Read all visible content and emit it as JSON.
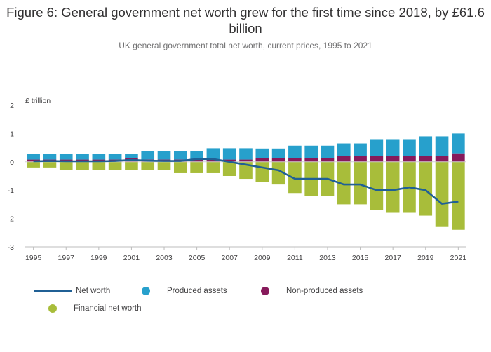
{
  "title": "Figure 6: General government net worth grew for the first time since 2018, by £61.6 billion",
  "subtitle": "UK general government total net worth, current prices, 1995 to 2021",
  "colors": {
    "produced": "#27a0cc",
    "nonproduced": "#871a5b",
    "financial": "#a8bd3a",
    "networth": "#206095"
  },
  "chart_data": {
    "type": "bar",
    "stacked": true,
    "ylabel": "£ trillion",
    "ylim": [
      -3,
      2
    ],
    "yticks": [
      2,
      1,
      0,
      -1,
      -2,
      -3
    ],
    "x": [
      1995,
      1996,
      1997,
      1998,
      1999,
      2000,
      2001,
      2002,
      2003,
      2004,
      2005,
      2006,
      2007,
      2008,
      2009,
      2010,
      2011,
      2012,
      2013,
      2014,
      2015,
      2016,
      2017,
      2018,
      2019,
      2020,
      2021
    ],
    "xtick_labels": [
      "1995",
      "1997",
      "1999",
      "2001",
      "2003",
      "2005",
      "2007",
      "2009",
      "2011",
      "2013",
      "2015",
      "2017",
      "2019",
      "2021"
    ],
    "series": [
      {
        "name": "Produced assets",
        "kind": "bar",
        "values": [
          0.2,
          0.2,
          0.2,
          0.2,
          0.2,
          0.2,
          0.15,
          0.3,
          0.3,
          0.3,
          0.3,
          0.4,
          0.4,
          0.4,
          0.35,
          0.35,
          0.45,
          0.45,
          0.45,
          0.45,
          0.45,
          0.6,
          0.6,
          0.6,
          0.7,
          0.7,
          0.7
        ]
      },
      {
        "name": "Non-produced assets",
        "kind": "bar",
        "values": [
          0.08,
          0.08,
          0.08,
          0.08,
          0.08,
          0.08,
          0.12,
          0.08,
          0.08,
          0.08,
          0.08,
          0.08,
          0.08,
          0.08,
          0.12,
          0.12,
          0.12,
          0.12,
          0.12,
          0.2,
          0.2,
          0.2,
          0.2,
          0.2,
          0.2,
          0.2,
          0.3
        ]
      },
      {
        "name": "Financial net worth",
        "kind": "bar",
        "values": [
          -0.2,
          -0.2,
          -0.3,
          -0.3,
          -0.3,
          -0.3,
          -0.3,
          -0.3,
          -0.3,
          -0.4,
          -0.4,
          -0.4,
          -0.5,
          -0.6,
          -0.7,
          -0.8,
          -1.1,
          -1.2,
          -1.2,
          -1.5,
          -1.5,
          -1.7,
          -1.8,
          -1.8,
          -1.9,
          -2.3,
          -2.4
        ]
      },
      {
        "name": "Net worth",
        "kind": "line",
        "values": [
          0.02,
          0.03,
          0.02,
          0.02,
          0.02,
          0.03,
          0.07,
          0.04,
          0.03,
          0.03,
          0.1,
          0.1,
          0.0,
          -0.1,
          -0.2,
          -0.3,
          -0.6,
          -0.6,
          -0.6,
          -0.8,
          -0.8,
          -1.0,
          -1.0,
          -0.9,
          -1.0,
          -1.48,
          -1.4
        ]
      }
    ],
    "legend": [
      "Net worth",
      "Produced assets",
      "Non-produced assets",
      "Financial net worth"
    ],
    "legend_position": "bottom",
    "grid": false
  }
}
